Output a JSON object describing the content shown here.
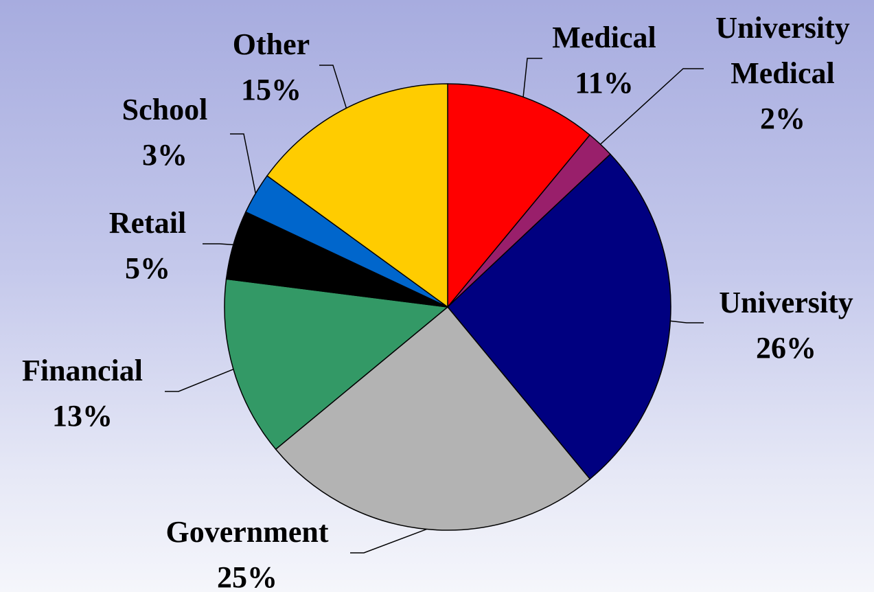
{
  "chart_data": {
    "type": "pie",
    "categories": [
      "Medical",
      "University Medical",
      "University",
      "Government",
      "Financial",
      "Retail",
      "School",
      "Other"
    ],
    "values": [
      11,
      2,
      26,
      25,
      13,
      5,
      3,
      15
    ],
    "value_labels": [
      "11%",
      "2%",
      "26%",
      "25%",
      "13%",
      "5%",
      "3%",
      "15%"
    ],
    "colors": [
      "#ff0000",
      "#991f6b",
      "#000080",
      "#b3b3b3",
      "#339966",
      "#000000",
      "#0066cc",
      "#ffcc00"
    ]
  }
}
